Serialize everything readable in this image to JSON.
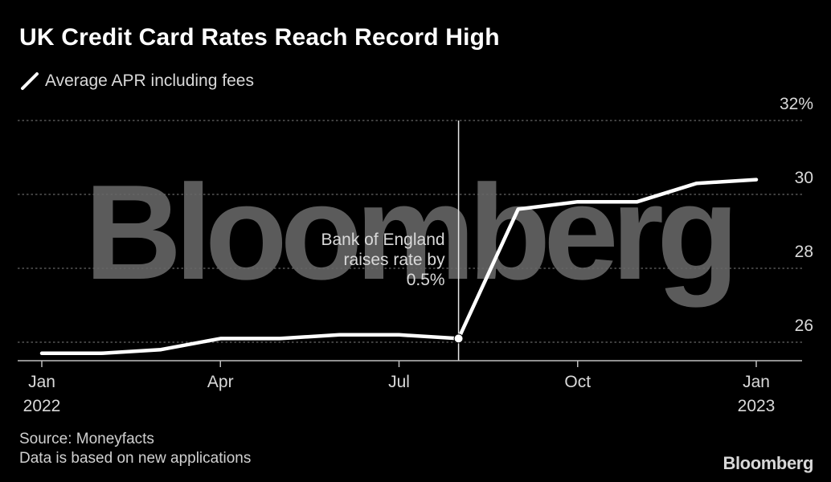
{
  "title": "UK Credit Card Rates Reach Record High",
  "legend_label": "Average APR including fees",
  "source": "Source: Moneyfacts",
  "note": "Data is based on new applications",
  "logo_text": "Bloomberg",
  "watermark_text": "Bloomberg",
  "annotation": {
    "lines": [
      "Bank of England",
      "raises rate by",
      "0.5%"
    ],
    "x_index": 7
  },
  "colors": {
    "background": "#000000",
    "line": "#ffffff",
    "grid": "#666666",
    "text": "#d9d9d9",
    "watermark": "#5b5b5b"
  },
  "chart_data": {
    "type": "line",
    "title": "UK Credit Card Rates Reach Record High",
    "xlabel": "",
    "ylabel": "",
    "x": [
      "Jan 2022",
      "Feb 2022",
      "Mar 2022",
      "Apr 2022",
      "May 2022",
      "Jun 2022",
      "Jul 2022",
      "Aug 2022",
      "Sep 2022",
      "Oct 2022",
      "Nov 2022",
      "Dec 2022",
      "Jan 2023"
    ],
    "series": [
      {
        "name": "Average APR including fees",
        "values": [
          25.7,
          25.7,
          25.8,
          26.1,
          26.1,
          26.2,
          26.2,
          26.1,
          29.6,
          29.8,
          29.8,
          30.3,
          30.4
        ]
      }
    ],
    "ylim": [
      25.5,
      32
    ],
    "y_ticks": [
      {
        "value": 26,
        "label": "26"
      },
      {
        "value": 28,
        "label": "28"
      },
      {
        "value": 30,
        "label": "30"
      },
      {
        "value": 32,
        "label": "32%"
      }
    ],
    "x_ticks": [
      {
        "index": 0,
        "label": "Jan",
        "sublabel": "2022"
      },
      {
        "index": 3,
        "label": "Apr",
        "sublabel": ""
      },
      {
        "index": 6,
        "label": "Jul",
        "sublabel": ""
      },
      {
        "index": 9,
        "label": "Oct",
        "sublabel": ""
      },
      {
        "index": 12,
        "label": "Jan",
        "sublabel": "2023"
      }
    ],
    "grid": true,
    "legend_position": "top-left"
  }
}
